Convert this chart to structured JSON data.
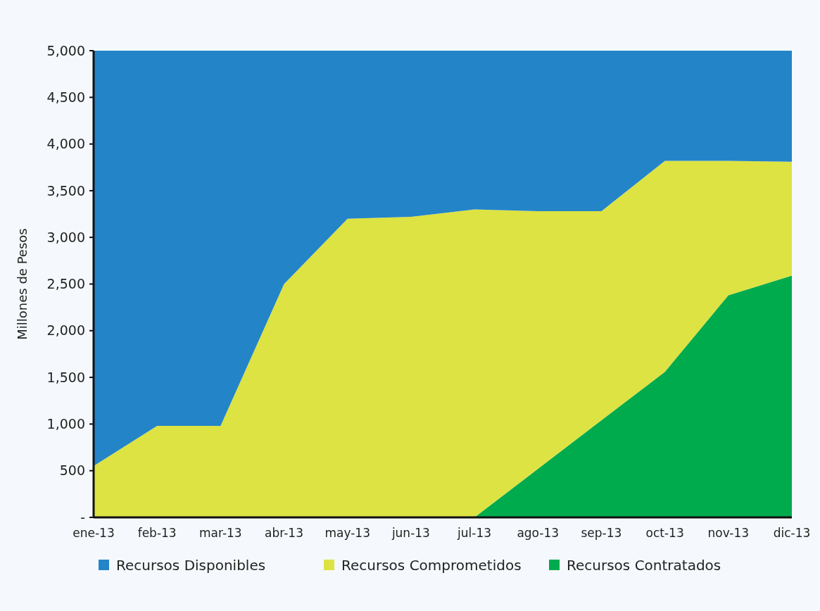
{
  "chart_data": {
    "type": "area",
    "stacked": true,
    "ylabel": "Millones de Pesos",
    "categories": [
      "ene-13",
      "feb-13",
      "mar-13",
      "abr-13",
      "may-13",
      "jun-13",
      "jul-13",
      "ago-13",
      "sep-13",
      "oct-13",
      "nov-13",
      "dic-13"
    ],
    "series": [
      {
        "name": "Recursos Contratados",
        "color": "#00ab4e",
        "values": [
          0,
          0,
          0,
          0,
          0,
          0,
          0,
          520,
          1040,
          1560,
          2380,
          2590
        ]
      },
      {
        "name": "Recursos Comprometidos",
        "color": "#dce342",
        "values": [
          550,
          980,
          980,
          2500,
          3200,
          3220,
          3300,
          2760,
          2240,
          2260,
          1440,
          1220
        ]
      },
      {
        "name": "Recursos Disponibles",
        "color": "#2484c8",
        "values": [
          4450,
          4020,
          4020,
          2500,
          1800,
          1780,
          1700,
          1720,
          1720,
          1180,
          1180,
          1190
        ]
      }
    ],
    "ylim": [
      0,
      5000
    ],
    "yticks": [
      {
        "value": 0,
        "label": "-"
      },
      500,
      {
        "value": 1000,
        "label": "1,000"
      },
      {
        "value": 1500,
        "label": "1,500"
      },
      {
        "value": 2000,
        "label": "2,000"
      },
      {
        "value": 2500,
        "label": "2,500"
      },
      {
        "value": 3000,
        "label": "3,000"
      },
      {
        "value": 3500,
        "label": "3,500"
      },
      {
        "value": 4000,
        "label": "4,000"
      },
      {
        "value": 4500,
        "label": "4,500"
      },
      {
        "value": 5000,
        "label": "5,000"
      }
    ],
    "grid": false,
    "legend": "bottom"
  }
}
